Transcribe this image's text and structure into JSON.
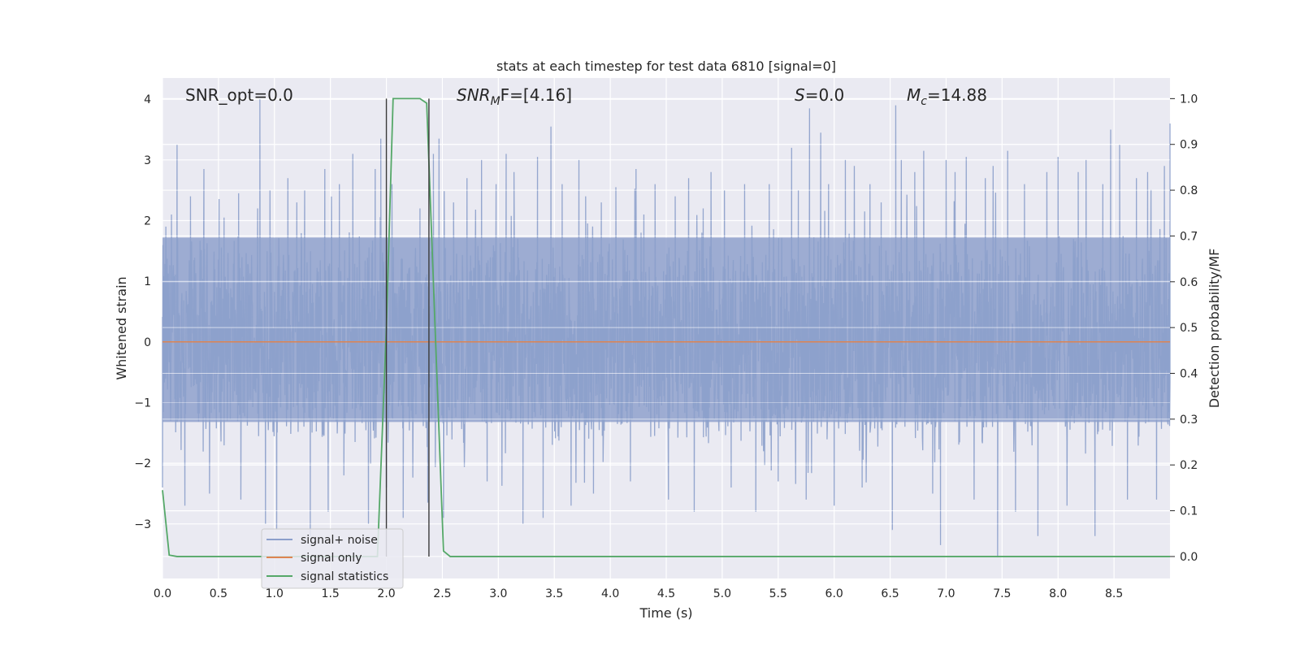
{
  "chart_data": {
    "type": "line",
    "title": "stats at each timestep for test data 6810 [signal=0]",
    "xlabel": "Time (s)",
    "ylabel": "Whitened strain",
    "y2label": "Detection probability/MF",
    "xlim": [
      0,
      9.0
    ],
    "ylim": [
      -3.9,
      4.35
    ],
    "y2lim": [
      -0.048,
      1.045
    ],
    "xticks": [
      0.0,
      0.5,
      1.0,
      1.5,
      2.0,
      2.5,
      3.0,
      3.5,
      4.0,
      4.5,
      5.0,
      5.5,
      6.0,
      6.5,
      7.0,
      7.5,
      8.0,
      8.5
    ],
    "xtick_labels": [
      "0.0",
      "0.5",
      "1.0",
      "1.5",
      "2.0",
      "2.5",
      "3.0",
      "3.5",
      "4.0",
      "4.5",
      "5.0",
      "5.5",
      "6.0",
      "6.5",
      "7.0",
      "7.5",
      "8.0",
      "8.5"
    ],
    "yticks": [
      4,
      3,
      2,
      1,
      0,
      -1,
      -2,
      -3
    ],
    "ytick_labels": [
      "4",
      "3",
      "2",
      "1",
      "0",
      "−1",
      "−2",
      "−3"
    ],
    "y2ticks": [
      1.0,
      0.9,
      0.8,
      0.7,
      0.6,
      0.5,
      0.4,
      0.3,
      0.2,
      0.1,
      0.0
    ],
    "y2tick_labels": [
      "1.0",
      "0.9",
      "0.8",
      "0.7",
      "0.6",
      "0.5",
      "0.4",
      "0.3",
      "0.2",
      "0.1",
      "0.0"
    ],
    "grid": true,
    "legend_position": "lower-left",
    "annotations": {
      "snr_opt": "SNR_opt=0.0",
      "snr_mf_base": "SNR",
      "snr_mf_sub": "M",
      "snr_mf_rest": "F=[4.16]",
      "s_label": "S",
      "s_value": "=0.0",
      "mc_base": "M",
      "mc_sub": "c",
      "mc_value": "=14.88"
    },
    "vertical_lines": [
      2.0,
      2.38
    ],
    "series": [
      {
        "name": "signal+ noise",
        "color": "#8c9fcb",
        "axis": "left",
        "noise_peaks": [
          [
            0.0,
            -2.4
          ],
          [
            0.03,
            1.9
          ],
          [
            0.08,
            2.1
          ],
          [
            0.13,
            3.25
          ],
          [
            0.2,
            -2.7
          ],
          [
            0.25,
            2.4
          ],
          [
            0.37,
            2.85
          ],
          [
            0.42,
            -2.5
          ],
          [
            0.55,
            2.05
          ],
          [
            0.68,
            2.45
          ],
          [
            0.7,
            -2.6
          ],
          [
            0.85,
            2.2
          ],
          [
            0.87,
            4.0
          ],
          [
            0.92,
            -3.0
          ],
          [
            0.96,
            2.5
          ],
          [
            1.02,
            -3.1
          ],
          [
            1.12,
            2.7
          ],
          [
            1.2,
            2.3
          ],
          [
            1.27,
            2.5
          ],
          [
            1.32,
            -3.2
          ],
          [
            1.45,
            2.85
          ],
          [
            1.48,
            -2.8
          ],
          [
            1.58,
            2.6
          ],
          [
            1.62,
            -2.2
          ],
          [
            1.7,
            3.1
          ],
          [
            1.84,
            -3.0
          ],
          [
            1.9,
            2.85
          ],
          [
            1.95,
            3.35
          ],
          [
            2.0,
            -2.4
          ],
          [
            2.05,
            2.6
          ],
          [
            2.15,
            -2.9
          ],
          [
            2.3,
            2.2
          ],
          [
            2.37,
            -2.65
          ],
          [
            2.42,
            3.1
          ],
          [
            2.47,
            3.35
          ],
          [
            2.51,
            -2.9
          ],
          [
            2.6,
            2.3
          ],
          [
            2.72,
            2.7
          ],
          [
            2.85,
            3.0
          ],
          [
            2.9,
            -2.3
          ],
          [
            2.98,
            2.6
          ],
          [
            3.07,
            3.1
          ],
          [
            3.14,
            2.8
          ],
          [
            3.22,
            -3.0
          ],
          [
            3.35,
            3.05
          ],
          [
            3.4,
            -2.9
          ],
          [
            3.47,
            3.55
          ],
          [
            3.57,
            2.6
          ],
          [
            3.65,
            -2.7
          ],
          [
            3.72,
            3.0
          ],
          [
            3.78,
            2.4
          ],
          [
            3.85,
            -2.5
          ],
          [
            3.92,
            2.3
          ],
          [
            4.05,
            2.55
          ],
          [
            4.18,
            -2.3
          ],
          [
            4.23,
            2.85
          ],
          [
            4.3,
            2.1
          ],
          [
            4.4,
            2.6
          ],
          [
            4.52,
            -2.6
          ],
          [
            4.58,
            2.4
          ],
          [
            4.7,
            2.7
          ],
          [
            4.75,
            -2.8
          ],
          [
            4.83,
            2.2
          ],
          [
            4.9,
            2.8
          ],
          [
            5.02,
            2.5
          ],
          [
            5.08,
            -2.4
          ],
          [
            5.2,
            2.6
          ],
          [
            5.3,
            -2.8
          ],
          [
            5.42,
            2.6
          ],
          [
            5.5,
            -2.3
          ],
          [
            5.62,
            3.2
          ],
          [
            5.68,
            2.5
          ],
          [
            5.75,
            -2.6
          ],
          [
            5.78,
            3.85
          ],
          [
            5.88,
            3.45
          ],
          [
            5.95,
            2.6
          ],
          [
            6.0,
            -2.7
          ],
          [
            6.1,
            3.0
          ],
          [
            6.18,
            2.9
          ],
          [
            6.25,
            -2.4
          ],
          [
            6.32,
            2.6
          ],
          [
            6.42,
            2.3
          ],
          [
            6.52,
            -3.1
          ],
          [
            6.55,
            3.9
          ],
          [
            6.6,
            3.0
          ],
          [
            6.72,
            2.8
          ],
          [
            6.8,
            3.15
          ],
          [
            6.88,
            -2.5
          ],
          [
            6.95,
            -3.35
          ],
          [
            7.0,
            3.0
          ],
          [
            7.08,
            2.8
          ],
          [
            7.18,
            3.05
          ],
          [
            7.25,
            -2.6
          ],
          [
            7.35,
            2.7
          ],
          [
            7.42,
            2.9
          ],
          [
            7.46,
            -3.55
          ],
          [
            7.55,
            3.15
          ],
          [
            7.62,
            -2.8
          ],
          [
            7.7,
            2.6
          ],
          [
            7.82,
            -3.2
          ],
          [
            7.9,
            2.8
          ],
          [
            8.0,
            3.05
          ],
          [
            8.08,
            -2.7
          ],
          [
            8.18,
            2.8
          ],
          [
            8.25,
            3.0
          ],
          [
            8.33,
            -3.2
          ],
          [
            8.4,
            2.6
          ],
          [
            8.47,
            3.5
          ],
          [
            8.55,
            3.25
          ],
          [
            8.62,
            -2.6
          ],
          [
            8.7,
            2.7
          ],
          [
            8.8,
            2.8
          ],
          [
            8.88,
            -2.6
          ],
          [
            8.95,
            2.9
          ],
          [
            9.0,
            3.6
          ]
        ]
      },
      {
        "name": "signal only",
        "color": "#dd8452",
        "axis": "left",
        "x": [
          0.0,
          9.0
        ],
        "y": [
          0.0,
          0.0
        ]
      },
      {
        "name": "signal statistics",
        "color": "#55a868",
        "axis": "right",
        "x": [
          0.0,
          0.06,
          0.13,
          1.92,
          2.0,
          2.06,
          2.3,
          2.36,
          2.51,
          2.57,
          9.0
        ],
        "y": [
          0.145,
          0.003,
          0.0,
          0.0,
          0.5,
          1.0,
          1.0,
          0.99,
          0.012,
          0.0,
          0.0
        ]
      }
    ]
  }
}
